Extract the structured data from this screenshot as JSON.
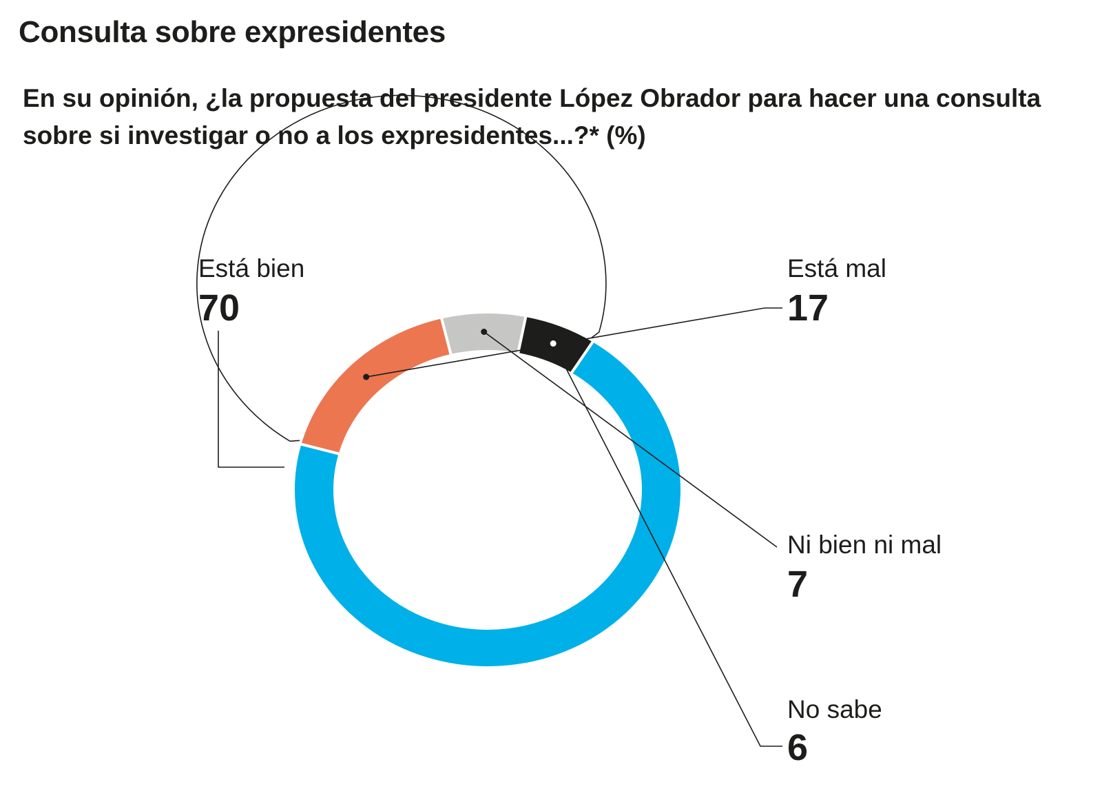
{
  "header": {
    "title": "Consulta sobre expresidentes",
    "subtitle": "En su opinión, ¿la propuesta del presidente López Obrador para hacer una consulta sobre si investigar o no a los expresidentes...?*  (%)"
  },
  "chart_data": {
    "type": "pie",
    "style": "donut",
    "categories": [
      "Está bien",
      "Está mal",
      "Ni bien ni mal",
      "No sabe"
    ],
    "values": [
      70,
      17,
      7,
      6
    ],
    "labels": [
      "70",
      "17",
      "7",
      "6"
    ],
    "colors": [
      "#00b0e8",
      "#ec7650",
      "#c6c6c5",
      "#1d1d1b"
    ],
    "unit": "%"
  }
}
